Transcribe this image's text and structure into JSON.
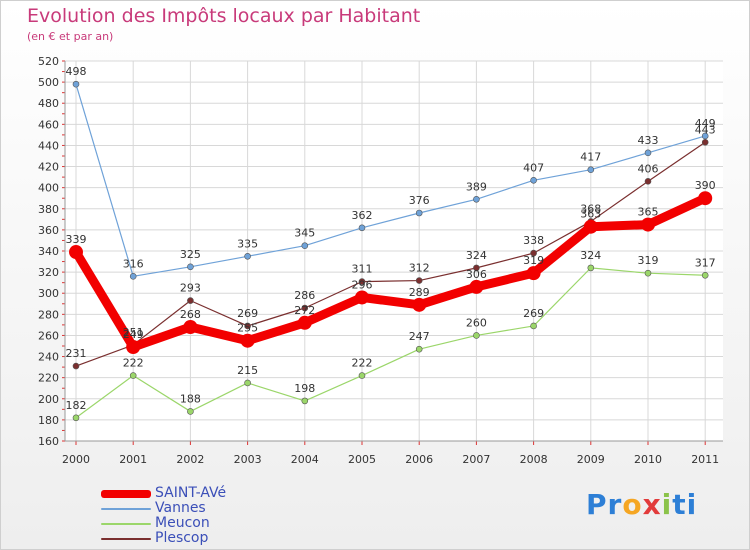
{
  "chart_data": {
    "type": "line",
    "title": "Evolution des Impôts locaux par Habitant",
    "subtitle": "(en € et par an)",
    "x": [
      "2000",
      "2001",
      "2002",
      "2003",
      "2004",
      "2005",
      "2006",
      "2007",
      "2008",
      "2009",
      "2010",
      "2011"
    ],
    "ylim": [
      160,
      520
    ],
    "yticks": [
      160,
      180,
      200,
      220,
      240,
      260,
      280,
      300,
      320,
      340,
      360,
      380,
      400,
      420,
      440,
      460,
      480,
      500,
      520
    ],
    "grid": true,
    "legend_position": "bottom-left",
    "series": [
      {
        "name": "SAINT-AVé",
        "color": "#f20000",
        "values": [
          339,
          249,
          268,
          255,
          272,
          296,
          289,
          306,
          319,
          363,
          365,
          390
        ],
        "labels": [
          "339",
          "249",
          "268",
          "255",
          "272",
          "296",
          "289",
          "306",
          "319",
          "363",
          "365",
          "390"
        ]
      },
      {
        "name": "Vannes",
        "color": "#6fa2d8",
        "values": [
          498,
          316,
          325,
          335,
          345,
          362,
          376,
          389,
          407,
          417,
          433,
          449
        ],
        "labels": [
          "498",
          "316",
          "325",
          "335",
          "345",
          "362",
          "376",
          "389",
          "407",
          "417",
          "433",
          "449"
        ]
      },
      {
        "name": "Meucon",
        "color": "#9bd66a",
        "values": [
          182,
          222,
          188,
          215,
          198,
          222,
          247,
          260,
          269,
          324,
          319,
          317
        ],
        "labels": [
          "182",
          "222",
          "188",
          "215",
          "198",
          "222",
          "247",
          "260",
          "269",
          "324",
          "319",
          "317"
        ]
      },
      {
        "name": "Plescop",
        "color": "#7a2f2f",
        "values": [
          231,
          251,
          293,
          269,
          286,
          311,
          312,
          324,
          338,
          368,
          406,
          443
        ],
        "labels": [
          "231",
          "251",
          "293",
          "269",
          "286",
          "311",
          "312",
          "324",
          "338",
          "368",
          "406",
          "443"
        ]
      }
    ]
  },
  "legend": {
    "items": [
      {
        "label": "SAINT-AVé",
        "color": "#f20000"
      },
      {
        "label": "Vannes",
        "color": "#6fa2d8"
      },
      {
        "label": "Meucon",
        "color": "#9bd66a"
      },
      {
        "label": "Plescop",
        "color": "#7a2f2f"
      }
    ]
  },
  "logo": {
    "letters": [
      "P",
      "r",
      "o",
      "x",
      "i",
      "t",
      "i"
    ]
  }
}
